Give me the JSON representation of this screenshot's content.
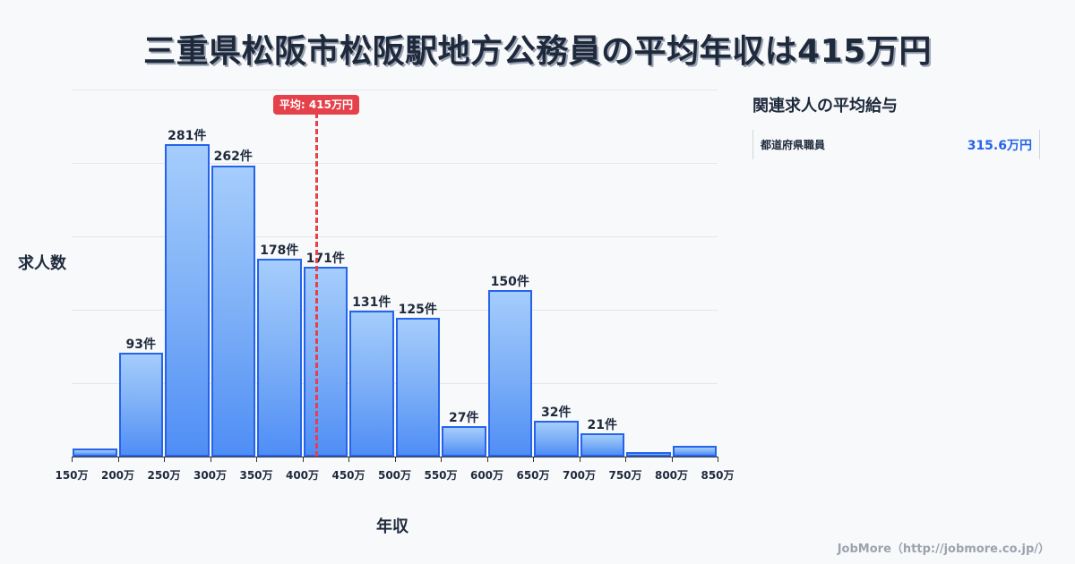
{
  "title": "三重県松阪市松阪駅地方公務員の平均年収は415万円",
  "axes": {
    "ylabel": "求人数",
    "xlabel": "年収"
  },
  "mean": {
    "value": 415,
    "label": "平均: 415万円",
    "color": "#e5414a"
  },
  "side_panel": {
    "title": "関連求人の平均給与",
    "rows": [
      {
        "name": "都道府県職員",
        "value": "315.6万円"
      }
    ]
  },
  "footer": "JobMore（http://jobmore.co.jp/）",
  "colors": {
    "bar_fill_top": "#a5cdfc",
    "bar_fill_bottom": "#4f8ef5",
    "bar_border": "#2563eb",
    "accent_blue": "#2563eb"
  },
  "chart_data": {
    "type": "bar",
    "title": "三重県松阪市松阪駅地方公務員の平均年収は415万円",
    "xlabel": "年収",
    "ylabel": "求人数",
    "x_ticks": [
      "150万",
      "200万",
      "250万",
      "300万",
      "350万",
      "400万",
      "450万",
      "500万",
      "550万",
      "600万",
      "650万",
      "700万",
      "750万",
      "800万",
      "850万"
    ],
    "categories": [
      "150-200万",
      "200-250万",
      "250-300万",
      "300-350万",
      "350-400万",
      "400-450万",
      "450-500万",
      "500-550万",
      "550-600万",
      "600-650万",
      "650-700万",
      "700-750万",
      "750-800万",
      "800-850万"
    ],
    "values": [
      7,
      93,
      281,
      262,
      178,
      171,
      131,
      125,
      27,
      150,
      32,
      21,
      4,
      10
    ],
    "value_labels": [
      "",
      "93件",
      "281件",
      "262件",
      "178件",
      "171件",
      "131件",
      "125件",
      "27件",
      "150件",
      "32件",
      "21件",
      "",
      ""
    ],
    "ylim": [
      0,
      330
    ],
    "grid": true,
    "mean_line": {
      "x": 415,
      "label": "平均: 415万円"
    },
    "legend": null
  }
}
